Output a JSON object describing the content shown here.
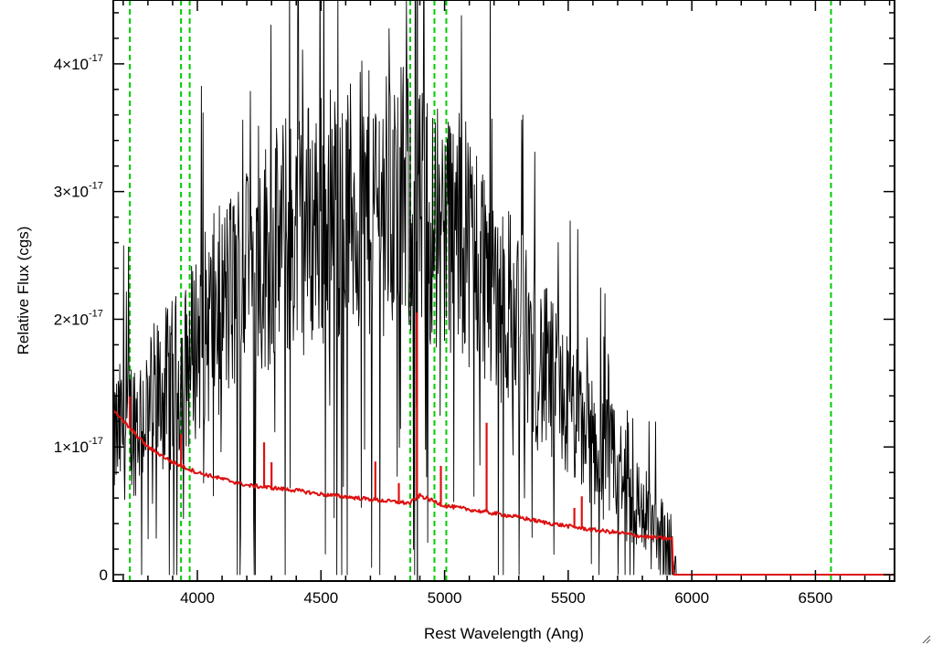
{
  "chart_data": {
    "type": "line",
    "title": "",
    "xlabel": "Rest Wavelength (Ang)",
    "ylabel": "Relative Flux (cgs)",
    "xlim": [
      3660,
      6820
    ],
    "ylim": [
      -5e-19,
      4.5e-17
    ],
    "x_ticks": [
      {
        "value": 4000,
        "label": "4000"
      },
      {
        "value": 4500,
        "label": "4500"
      },
      {
        "value": 5000,
        "label": "5000"
      },
      {
        "value": 5500,
        "label": "5500"
      },
      {
        "value": 6000,
        "label": "6000"
      },
      {
        "value": 6500,
        "label": "6500"
      }
    ],
    "y_ticks": [
      {
        "value": 0,
        "mantissa": "0",
        "exponent": ""
      },
      {
        "value": 1e-17,
        "mantissa": "1×10",
        "exponent": "-17"
      },
      {
        "value": 2e-17,
        "mantissa": "2×10",
        "exponent": "-17"
      },
      {
        "value": 3e-17,
        "mantissa": "3×10",
        "exponent": "-17"
      },
      {
        "value": 4e-17,
        "mantissa": "4×10",
        "exponent": "-17"
      }
    ],
    "reference_lines": [
      3727,
      3934,
      3969,
      4861,
      4959,
      5007,
      6563
    ],
    "reference_line_color": "#00cc00",
    "marker_line": 4890,
    "series": [
      {
        "style": "noisy-spectrum",
        "color": "#000000",
        "x": [
          3660,
          3700,
          3750,
          3800,
          3850,
          3900,
          3950,
          4000,
          4100,
          4200,
          4300,
          4400,
          4500,
          4600,
          4700,
          4800,
          4850,
          4900,
          5000,
          5100,
          5200,
          5300,
          5400,
          5500,
          5600,
          5700,
          5800,
          5850,
          5900,
          5920,
          5930,
          6820
        ],
        "y": [
          1.05e-17,
          1.15e-17,
          1.2e-17,
          1.3e-17,
          1.4e-17,
          1.5e-17,
          1.6e-17,
          1.85e-17,
          2.1e-17,
          2.35e-17,
          2.55e-17,
          2.7e-17,
          2.8e-17,
          2.85e-17,
          2.9e-17,
          2.95e-17,
          2.9e-17,
          2.8e-17,
          2.75e-17,
          2.6e-17,
          2.3e-17,
          1.95e-17,
          1.6e-17,
          1.3e-17,
          1.05e-17,
          8e-18,
          5e-18,
          3.5e-18,
          2.5e-18,
          1.5e-18,
          0,
          0
        ]
      },
      {
        "style": "model",
        "color": "#dd1111",
        "x": [
          3660,
          3700,
          3800,
          3900,
          4000,
          4100,
          4200,
          4300,
          4400,
          4500,
          4600,
          4700,
          4800,
          4860,
          4900,
          5000,
          5100,
          5200,
          5300,
          5400,
          5500,
          5600,
          5700,
          5800,
          5850,
          5920,
          5925,
          6820
        ],
        "y": [
          1.3e-17,
          1.2e-17,
          1e-17,
          8.8e-18,
          8e-18,
          7.5e-18,
          7e-18,
          6.8e-18,
          6.6e-18,
          6.3e-18,
          6.1e-18,
          5.9e-18,
          5.7e-18,
          5.6e-18,
          6.2e-18,
          5.4e-18,
          5.1e-18,
          4.8e-18,
          4.5e-18,
          4.1e-18,
          3.8e-18,
          3.5e-18,
          3.3e-18,
          3e-18,
          2.9e-18,
          2.8e-18,
          0,
          0
        ],
        "emission_spikes": [
          {
            "x": 3727,
            "height": 2.5e-18
          },
          {
            "x": 3934,
            "height": 2.5e-18
          },
          {
            "x": 4270,
            "height": 3.5e-18
          },
          {
            "x": 4300,
            "height": 2e-18
          },
          {
            "x": 4720,
            "height": 3e-18
          },
          {
            "x": 4815,
            "height": 1.5e-18
          },
          {
            "x": 4888,
            "height": 1.45e-17
          },
          {
            "x": 4985,
            "height": 3e-18
          },
          {
            "x": 5170,
            "height": 7e-18
          },
          {
            "x": 5525,
            "height": 1.5e-18
          },
          {
            "x": 5555,
            "height": 2.5e-18
          }
        ]
      }
    ]
  }
}
